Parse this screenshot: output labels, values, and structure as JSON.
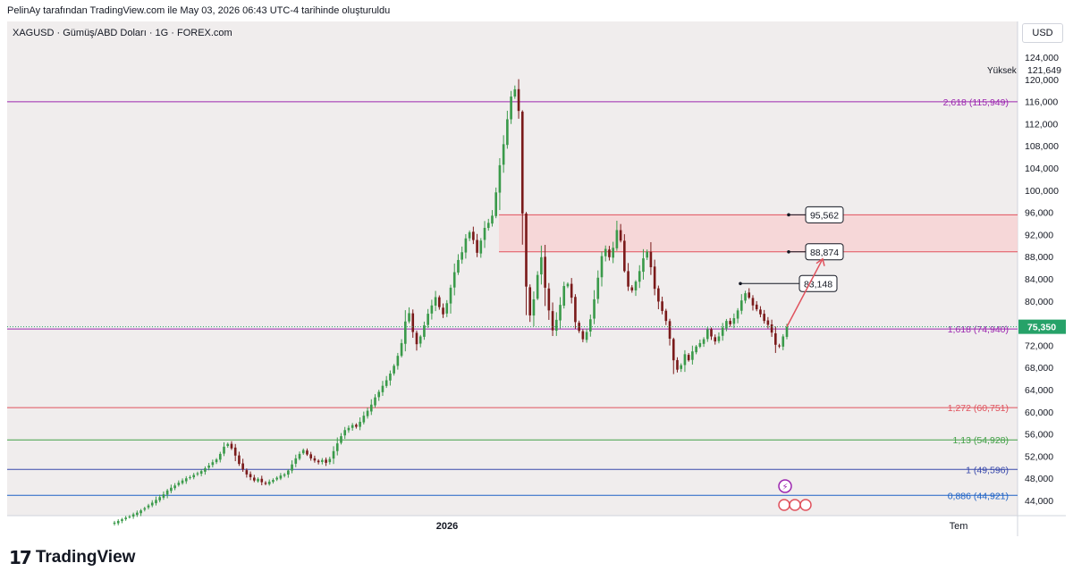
{
  "caption": "PelinAy tarafından TradingView.com ile May 03, 2026 06:43 UTC-4 tarihinde oluşturuldu",
  "symbol_line": "XAGUSD · Gümüş/ABD Doları · 1G · FOREX.com",
  "currency_label": "USD",
  "high_label": "Yüksek",
  "high_value": "121,649",
  "last_price": "75,350",
  "brand": "TradingView",
  "colors": {
    "up": "#3a9a4a",
    "down": "#7a1a1a",
    "zone_fill": "#f7d2d4",
    "zone_line": "#e0525d",
    "price_tag": "#26a269",
    "arrow": "#e0525d"
  },
  "chart_data": {
    "type": "candlestick",
    "title": "XAGUSD · Gümüş/ABD Doları · 1G · FOREX.com",
    "y_axis": {
      "ylim": [
        40000,
        126000
      ],
      "ticks": [
        "44,000",
        "48,000",
        "52,000",
        "56,000",
        "60,000",
        "64,000",
        "68,000",
        "72,000",
        "76,000",
        "80,000",
        "84,000",
        "88,000",
        "92,000",
        "96,000",
        "100,000",
        "104,000",
        "108,000",
        "112,000",
        "116,000",
        "120,000",
        "124,000"
      ],
      "tick_values": [
        44000,
        48000,
        52000,
        56000,
        60000,
        64000,
        68000,
        72000,
        76000,
        80000,
        84000,
        88000,
        92000,
        96000,
        100000,
        104000,
        108000,
        112000,
        116000,
        120000,
        124000
      ]
    },
    "x_axis": {
      "labels": [
        "2026",
        "Tem"
      ]
    },
    "fib_levels": [
      {
        "label": "2,618 (115,949)",
        "value": 115949,
        "color": "#9c27b0"
      },
      {
        "label": "1,618 (74,940)",
        "value": 74940,
        "color": "#9c27b0"
      },
      {
        "label": "1,272 (60,751)",
        "value": 60751,
        "color": "#e0525d"
      },
      {
        "label": "1,13 (54,928)",
        "value": 54928,
        "color": "#43a047"
      },
      {
        "label": "1 (49,596)",
        "value": 49596,
        "color": "#3949ab"
      },
      {
        "label": "0,886 (44,921)",
        "value": 44921,
        "color": "#1e63c6"
      }
    ],
    "zone": {
      "top": 95562,
      "bottom": 88874
    },
    "annotations": [
      {
        "label": "95,562",
        "value": 95562
      },
      {
        "label": "88,874",
        "value": 88874
      },
      {
        "label": "83,148",
        "value": 83148
      }
    ],
    "close_series": [
      40000,
      40300,
      40600,
      40900,
      41100,
      41500,
      41800,
      42200,
      42600,
      43100,
      43600,
      44100,
      44600,
      45100,
      45800,
      46300,
      46700,
      47200,
      47600,
      48000,
      48200,
      48600,
      48900,
      49300,
      49800,
      50300,
      50900,
      51400,
      52400,
      53700,
      54200,
      53400,
      52100,
      50600,
      49600,
      48700,
      48200,
      47600,
      47900,
      47300,
      47000,
      47400,
      47700,
      48100,
      48500,
      48700,
      49400,
      50500,
      51600,
      52400,
      53100,
      52300,
      51600,
      51200,
      50900,
      51300,
      50800,
      51500,
      52900,
      54300,
      55600,
      56700,
      57100,
      57600,
      57300,
      58200,
      59300,
      60200,
      61300,
      62600,
      63600,
      64700,
      65700,
      66900,
      68300,
      70100,
      72400,
      76300,
      77800,
      74400,
      72200,
      73600,
      75600,
      77700,
      79200,
      80700,
      78900,
      77600,
      79600,
      82400,
      85200,
      87400,
      88800,
      91300,
      92400,
      91000,
      88700,
      90900,
      93200,
      94100,
      95400,
      99600,
      104500,
      108300,
      112800,
      116900,
      118200,
      114300,
      95800,
      82600,
      77400,
      80300,
      84700,
      87900,
      82400,
      78300,
      74700,
      76600,
      79300,
      82700,
      83100,
      80600,
      76200,
      74600,
      73100,
      74400,
      76700,
      80300,
      84200,
      88100,
      89400,
      87900,
      89600,
      92800,
      90900,
      85400,
      82600,
      81900,
      83500,
      85400,
      87700,
      88900,
      86100,
      82200,
      79900,
      78200,
      76400,
      73200,
      69300,
      67600,
      68400,
      70400,
      69300,
      70900,
      71800,
      72400,
      73100,
      74900,
      73600,
      72700,
      73600,
      75200,
      76400,
      75800,
      76900,
      78300,
      80100,
      81400,
      80600,
      79200,
      78500,
      77600,
      76400,
      75700,
      74300,
      72100,
      71800,
      73600,
      75350
    ]
  }
}
